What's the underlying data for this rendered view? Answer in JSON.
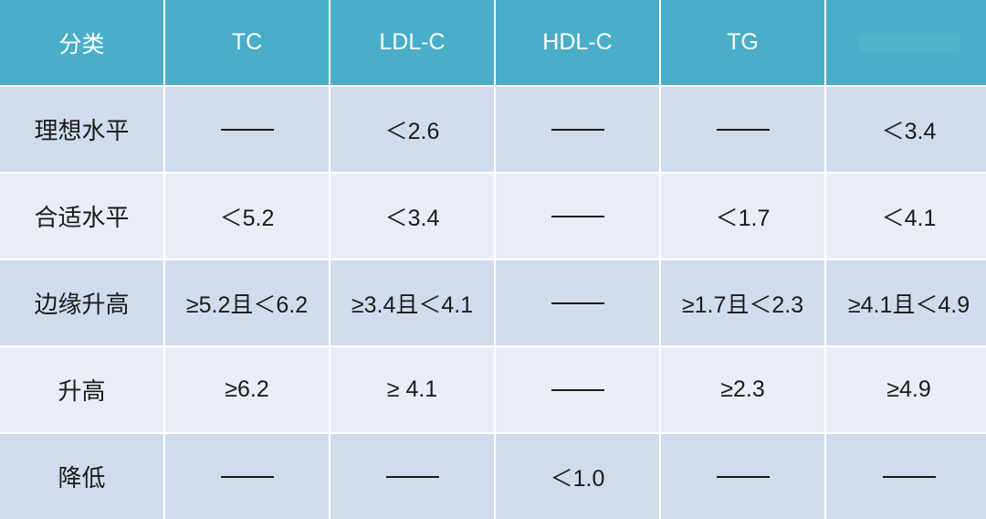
{
  "header": {
    "category": "分类",
    "tc": "TC",
    "ldl": "LDL-C",
    "hdl": "HDL-C",
    "tg": "TG",
    "last": ""
  },
  "rows": [
    {
      "label": "理想水平",
      "tc": "——",
      "ldl": "＜2.6",
      "hdl": "——",
      "tg": "——",
      "last": "＜3.4"
    },
    {
      "label": "合适水平",
      "tc": "＜5.2",
      "ldl": "＜3.4",
      "hdl": "——",
      "tg": "＜1.7",
      "last": "＜4.1"
    },
    {
      "label": "边缘升高",
      "tc": "≥5.2且＜6.2",
      "ldl": "≥3.4且＜4.1",
      "hdl": "——",
      "tg": "≥1.7且＜2.3",
      "last": "≥4.1且＜4.9"
    },
    {
      "label": "升高",
      "tc": "≥6.2",
      "ldl": "≥ 4.1",
      "hdl": "——",
      "tg": "≥2.3",
      "last": "≥4.9"
    },
    {
      "label": "降低",
      "tc": "——",
      "ldl": "——",
      "hdl": "＜1.0",
      "tg": "——",
      "last": "——"
    }
  ],
  "colors": {
    "header_bg": "#4aaec8",
    "row_odd_bg": "#d0dcec",
    "row_even_bg": "#e9eef6",
    "text": "#1a1a1a"
  }
}
